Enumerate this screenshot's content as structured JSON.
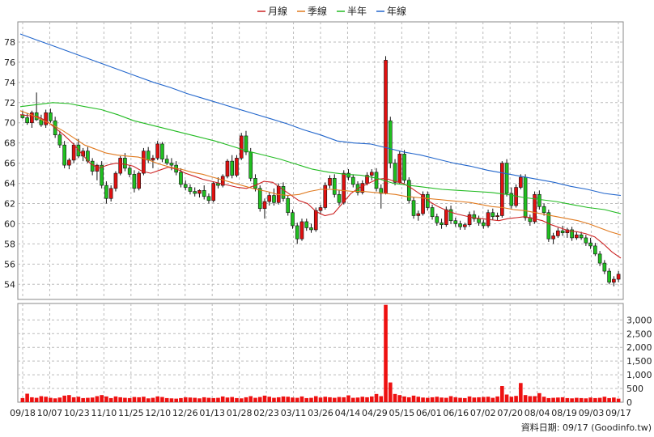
{
  "chart_data": {
    "type": "candlestick",
    "legend": [
      {
        "label": "月線",
        "color": "#cc2222"
      },
      {
        "label": "季線",
        "color": "#e07a1f"
      },
      {
        "label": "半年",
        "color": "#22bb22"
      },
      {
        "label": "年線",
        "color": "#2266cc"
      }
    ],
    "price_axis": {
      "ylim": [
        52.5,
        80
      ],
      "ticks": [
        54,
        56,
        58,
        60,
        62,
        64,
        66,
        68,
        70,
        72,
        74,
        76,
        78
      ]
    },
    "volume_axis": {
      "ylim": [
        0,
        3600
      ],
      "ticks": [
        "0",
        "500",
        "1,000",
        "1,500",
        "2,000",
        "2,500",
        "3,000"
      ],
      "tick_values": [
        0,
        500,
        1000,
        1500,
        2000,
        2500,
        3000
      ]
    },
    "x_tick_labels": [
      "09/18",
      "10/07",
      "10/23",
      "11/10",
      "11/25",
      "12/10",
      "12/26",
      "01/13",
      "01/28",
      "02/23",
      "03/11",
      "03/26",
      "04/14",
      "04/29",
      "05/15",
      "06/01",
      "06/16",
      "07/02",
      "07/20",
      "08/04",
      "08/19",
      "09/03",
      "09/17"
    ],
    "candles": [
      [
        70.8,
        71.2,
        70.4,
        70.5
      ],
      [
        70.5,
        70.9,
        69.8,
        70.0
      ],
      [
        70.0,
        71.2,
        69.5,
        71.0
      ],
      [
        71.0,
        73.0,
        70.2,
        70.3
      ],
      [
        70.3,
        70.8,
        69.6,
        69.8
      ],
      [
        69.8,
        71.3,
        69.5,
        71.0
      ],
      [
        71.0,
        71.4,
        70.0,
        70.2
      ],
      [
        70.2,
        70.6,
        68.5,
        68.8
      ],
      [
        68.8,
        69.2,
        67.5,
        67.8
      ],
      [
        67.8,
        68.2,
        65.5,
        65.8
      ],
      [
        65.8,
        66.5,
        65.4,
        66.3
      ],
      [
        66.3,
        68.0,
        66.0,
        67.8
      ],
      [
        67.8,
        68.4,
        66.5,
        66.7
      ],
      [
        66.7,
        67.5,
        66.2,
        67.2
      ],
      [
        67.2,
        67.6,
        66.0,
        66.2
      ],
      [
        66.2,
        66.5,
        64.8,
        65.2
      ],
      [
        65.2,
        65.9,
        64.3,
        65.8
      ],
      [
        65.8,
        66.2,
        63.5,
        63.8
      ],
      [
        63.8,
        64.2,
        62.0,
        62.5
      ],
      [
        62.5,
        63.8,
        62.2,
        63.5
      ],
      [
        63.5,
        65.2,
        63.2,
        65.0
      ],
      [
        65.0,
        66.7,
        64.8,
        66.5
      ],
      [
        66.5,
        67.0,
        65.2,
        65.5
      ],
      [
        65.5,
        65.8,
        64.6,
        64.9
      ],
      [
        64.9,
        65.3,
        63.1,
        63.5
      ],
      [
        63.5,
        65.2,
        63.3,
        65.0
      ],
      [
        65.0,
        67.5,
        64.8,
        67.2
      ],
      [
        67.2,
        67.6,
        66.0,
        66.3
      ],
      [
        66.3,
        66.8,
        65.5,
        66.5
      ],
      [
        66.5,
        68.2,
        66.3,
        67.9
      ],
      [
        67.9,
        68.1,
        66.1,
        66.4
      ],
      [
        66.4,
        66.8,
        65.8,
        66.0
      ],
      [
        66.0,
        66.5,
        65.3,
        65.8
      ],
      [
        65.8,
        66.2,
        64.8,
        65.1
      ],
      [
        65.1,
        65.5,
        63.6,
        63.9
      ],
      [
        63.9,
        64.3,
        63.3,
        63.6
      ],
      [
        63.6,
        63.9,
        62.9,
        63.2
      ],
      [
        63.2,
        63.6,
        62.7,
        63.0
      ],
      [
        63.0,
        63.4,
        62.6,
        63.3
      ],
      [
        63.3,
        63.8,
        62.4,
        62.7
      ],
      [
        62.7,
        63.0,
        62.0,
        62.3
      ],
      [
        62.3,
        64.2,
        62.1,
        64.0
      ],
      [
        64.0,
        64.6,
        63.5,
        63.8
      ],
      [
        63.8,
        64.9,
        63.6,
        64.7
      ],
      [
        64.7,
        66.4,
        64.5,
        66.2
      ],
      [
        66.2,
        66.8,
        64.5,
        64.8
      ],
      [
        64.8,
        66.8,
        64.6,
        66.5
      ],
      [
        66.5,
        69.0,
        66.3,
        68.7
      ],
      [
        68.7,
        69.2,
        66.8,
        67.1
      ],
      [
        67.1,
        67.5,
        64.2,
        64.5
      ],
      [
        64.5,
        64.9,
        63.2,
        63.5
      ],
      [
        63.5,
        63.8,
        61.2,
        61.5
      ],
      [
        61.5,
        62.5,
        60.5,
        62.2
      ],
      [
        62.2,
        63.1,
        61.8,
        62.8
      ],
      [
        62.8,
        63.5,
        61.8,
        62.1
      ],
      [
        62.1,
        64.0,
        61.9,
        63.7
      ],
      [
        63.7,
        64.1,
        62.2,
        62.5
      ],
      [
        62.5,
        62.8,
        60.8,
        61.1
      ],
      [
        61.1,
        61.4,
        59.5,
        59.8
      ],
      [
        59.8,
        60.1,
        58.0,
        58.5
      ],
      [
        58.5,
        60.5,
        58.3,
        60.2
      ],
      [
        60.2,
        60.5,
        59.3,
        59.6
      ],
      [
        59.6,
        60.0,
        59.1,
        59.4
      ],
      [
        59.4,
        61.6,
        59.2,
        61.3
      ],
      [
        61.3,
        61.9,
        60.9,
        61.6
      ],
      [
        61.6,
        64.1,
        61.4,
        63.8
      ],
      [
        63.8,
        64.8,
        63.5,
        64.5
      ],
      [
        64.5,
        64.9,
        62.6,
        62.9
      ],
      [
        62.9,
        63.3,
        61.8,
        62.1
      ],
      [
        62.1,
        65.3,
        61.9,
        65.0
      ],
      [
        65.0,
        65.4,
        64.3,
        64.6
      ],
      [
        64.6,
        64.9,
        63.6,
        63.9
      ],
      [
        63.9,
        64.2,
        62.8,
        63.1
      ],
      [
        63.1,
        64.3,
        62.9,
        64.0
      ],
      [
        64.0,
        65.1,
        63.8,
        64.8
      ],
      [
        64.8,
        65.4,
        64.3,
        65.1
      ],
      [
        65.1,
        65.5,
        63.2,
        63.5
      ],
      [
        63.5,
        63.9,
        61.5,
        63.0
      ],
      [
        63.0,
        76.6,
        62.9,
        76.2
      ],
      [
        70.2,
        70.6,
        65.5,
        66.0
      ],
      [
        66.0,
        66.4,
        63.8,
        64.1
      ],
      [
        64.1,
        67.2,
        63.9,
        66.9
      ],
      [
        66.9,
        67.3,
        64.0,
        64.3
      ],
      [
        64.3,
        64.6,
        62.0,
        62.3
      ],
      [
        62.3,
        62.6,
        60.5,
        60.8
      ],
      [
        60.8,
        61.3,
        60.3,
        61.0
      ],
      [
        61.0,
        63.2,
        60.8,
        62.9
      ],
      [
        62.9,
        63.2,
        61.3,
        61.6
      ],
      [
        61.6,
        61.9,
        60.4,
        60.7
      ],
      [
        60.7,
        61.0,
        59.8,
        60.1
      ],
      [
        60.1,
        60.5,
        59.5,
        59.9
      ],
      [
        59.9,
        61.7,
        59.7,
        61.4
      ],
      [
        61.4,
        61.8,
        60.0,
        60.3
      ],
      [
        60.3,
        60.6,
        59.7,
        60.0
      ],
      [
        60.0,
        60.3,
        59.4,
        59.7
      ],
      [
        59.7,
        60.1,
        59.4,
        59.9
      ],
      [
        59.9,
        61.2,
        59.7,
        60.9
      ],
      [
        60.9,
        61.3,
        60.2,
        60.5
      ],
      [
        60.5,
        60.8,
        59.8,
        60.1
      ],
      [
        60.1,
        60.4,
        59.5,
        59.8
      ],
      [
        59.8,
        61.4,
        59.6,
        61.1
      ],
      [
        61.1,
        61.5,
        60.4,
        60.7
      ],
      [
        60.7,
        61.1,
        60.3,
        60.8
      ],
      [
        60.8,
        66.2,
        60.6,
        66.0
      ],
      [
        66.0,
        66.4,
        62.7,
        63.0
      ],
      [
        63.0,
        63.6,
        61.5,
        61.8
      ],
      [
        61.8,
        63.9,
        61.6,
        63.6
      ],
      [
        63.6,
        64.9,
        63.4,
        64.6
      ],
      [
        64.6,
        64.9,
        60.3,
        60.6
      ],
      [
        60.6,
        60.9,
        59.8,
        60.2
      ],
      [
        60.2,
        63.2,
        60.0,
        62.9
      ],
      [
        62.9,
        63.3,
        61.4,
        61.7
      ],
      [
        61.7,
        62.0,
        60.8,
        61.1
      ],
      [
        61.1,
        61.4,
        58.2,
        58.5
      ],
      [
        58.5,
        59.1,
        58.0,
        58.8
      ],
      [
        58.8,
        59.6,
        58.6,
        59.3
      ],
      [
        59.3,
        59.8,
        58.8,
        59.1
      ],
      [
        59.1,
        59.6,
        58.6,
        59.4
      ],
      [
        59.4,
        59.7,
        58.3,
        58.6
      ],
      [
        58.6,
        59.2,
        58.4,
        58.9
      ],
      [
        58.9,
        59.2,
        58.4,
        58.6
      ],
      [
        58.6,
        58.9,
        57.8,
        58.1
      ],
      [
        58.1,
        58.6,
        57.5,
        57.8
      ],
      [
        57.8,
        58.1,
        56.8,
        57.0
      ],
      [
        57.0,
        57.3,
        55.8,
        56.1
      ],
      [
        56.1,
        56.4,
        55.0,
        55.3
      ],
      [
        55.3,
        55.6,
        54.0,
        54.2
      ],
      [
        54.2,
        54.8,
        53.8,
        54.5
      ],
      [
        54.5,
        55.3,
        54.2,
        55.0
      ]
    ],
    "ma": {
      "月線": [
        70.8,
        70.7,
        70.6,
        70.2,
        69.5,
        68.8,
        68.0,
        67.0,
        66.0,
        65.5,
        65.8,
        66.0,
        65.9,
        65.7,
        65.2,
        65.0,
        65.3,
        65.6,
        65.4,
        65.0,
        64.7,
        64.4,
        64.2,
        64.0,
        63.8,
        63.6,
        63.5,
        63.8,
        64.2,
        64.1,
        63.5,
        62.9,
        62.3,
        62.0,
        61.2,
        60.8,
        61.0,
        62.0,
        63.0,
        63.6,
        64.0,
        64.4,
        64.5,
        64.2,
        64.0,
        63.5,
        62.9,
        62.2,
        61.7,
        61.3,
        61.0,
        60.8,
        60.6,
        60.5,
        60.4,
        60.3,
        60.5,
        60.6,
        60.7,
        60.5,
        60.3,
        59.9,
        59.6,
        59.3,
        59.2,
        59.0,
        58.7,
        58.0,
        57.2,
        56.6
      ],
      "季線": [
        71.2,
        70.8,
        70.3,
        69.8,
        69.2,
        68.5,
        67.8,
        67.4,
        67.0,
        66.8,
        66.7,
        66.6,
        66.3,
        65.9,
        65.6,
        65.4,
        65.1,
        64.9,
        64.6,
        64.3,
        64.0,
        63.7,
        63.4,
        63.2,
        62.9,
        62.8,
        62.9,
        63.2,
        63.4,
        63.4,
        63.3,
        63.2,
        63.2,
        63.1,
        63.0,
        62.9,
        62.7,
        62.6,
        62.5,
        62.4,
        62.3,
        62.2,
        62.1,
        61.9,
        61.7,
        61.6,
        61.4,
        61.3,
        61.1,
        60.9,
        60.7,
        60.5,
        60.3,
        60.0,
        59.6,
        59.2,
        58.9
      ],
      "半年": [
        71.6,
        71.8,
        72.0,
        71.9,
        71.6,
        71.3,
        70.8,
        70.2,
        69.8,
        69.4,
        69.0,
        68.6,
        68.2,
        67.7,
        67.2,
        66.8,
        66.4,
        65.9,
        65.4,
        65.1,
        64.9,
        64.8,
        64.5,
        64.0,
        63.8,
        63.6,
        63.4,
        63.3,
        63.2,
        63.1,
        62.9,
        62.6,
        62.4,
        62.2,
        61.9,
        61.6,
        61.4,
        61.0
      ],
      "年線": [
        78.8,
        78.2,
        77.6,
        77.0,
        76.4,
        75.8,
        75.2,
        74.6,
        74.0,
        73.5,
        72.9,
        72.4,
        71.9,
        71.4,
        70.9,
        70.4,
        69.9,
        69.3,
        68.8,
        68.2,
        68.0,
        67.9,
        67.5,
        67.1,
        66.8,
        66.4,
        66.0,
        65.7,
        65.3,
        65.0,
        64.7,
        64.4,
        64.1,
        63.7,
        63.4,
        63.0,
        62.8
      ]
    },
    "volume": [
      150,
      310,
      180,
      160,
      220,
      200,
      160,
      140,
      170,
      240,
      260,
      180,
      200,
      150,
      160,
      170,
      220,
      260,
      210,
      150,
      210,
      180,
      160,
      150,
      190,
      180,
      200,
      140,
      160,
      210,
      190,
      150,
      140,
      130,
      150,
      180,
      170,
      160,
      140,
      180,
      160,
      150,
      160,
      210,
      170,
      190,
      150,
      140,
      180,
      220,
      160,
      190,
      240,
      200,
      160,
      180,
      210,
      200,
      170,
      160,
      210,
      150,
      160,
      220,
      170,
      200,
      180,
      160,
      190,
      180,
      250,
      160,
      170,
      200,
      180,
      210,
      300,
      220,
      3550,
      720,
      300,
      260,
      210,
      180,
      240,
      200,
      170,
      160,
      180,
      200,
      170,
      160,
      220,
      180,
      160,
      150,
      210,
      170,
      180,
      190,
      200,
      160,
      210,
      590,
      280,
      200,
      230,
      700,
      260,
      220,
      220,
      330,
      200,
      150,
      160,
      170,
      180,
      150,
      140,
      160,
      150,
      140,
      170,
      150,
      160,
      200,
      150,
      170,
      130
    ]
  },
  "footer": {
    "source": "資料日期: 09/17  (Goodinfo.tw)"
  }
}
